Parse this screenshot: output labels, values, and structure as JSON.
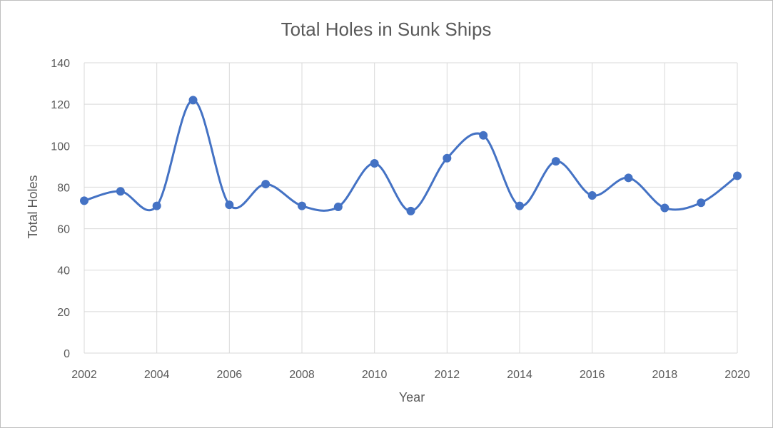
{
  "chart_data": {
    "type": "line",
    "title": "Total Holes in Sunk Ships",
    "xlabel": "Year",
    "ylabel": "Total Holes",
    "x": [
      2002,
      2003,
      2004,
      2005,
      2006,
      2007,
      2008,
      2009,
      2010,
      2011,
      2012,
      2013,
      2014,
      2015,
      2016,
      2017,
      2018,
      2019,
      2020
    ],
    "series": [
      {
        "values": [
          73.5,
          78,
          71,
          122,
          71.5,
          81.5,
          71,
          70.5,
          91.5,
          68.5,
          94,
          105,
          71,
          92.5,
          76,
          84.5,
          70,
          72.5,
          85.5
        ]
      }
    ],
    "xlim": [
      2002,
      2020
    ],
    "ylim": [
      0,
      140
    ],
    "x_ticks": [
      2002,
      2004,
      2006,
      2008,
      2010,
      2012,
      2014,
      2016,
      2018,
      2020
    ],
    "y_ticks": [
      0,
      20,
      40,
      60,
      80,
      100,
      120,
      140
    ],
    "grid": true,
    "smoothed": true,
    "markers": true,
    "legend": "none",
    "colors": {
      "series": "#4472C4",
      "grid": "#d9d9d9",
      "text": "#595959",
      "border": "#bfbfbf"
    }
  }
}
